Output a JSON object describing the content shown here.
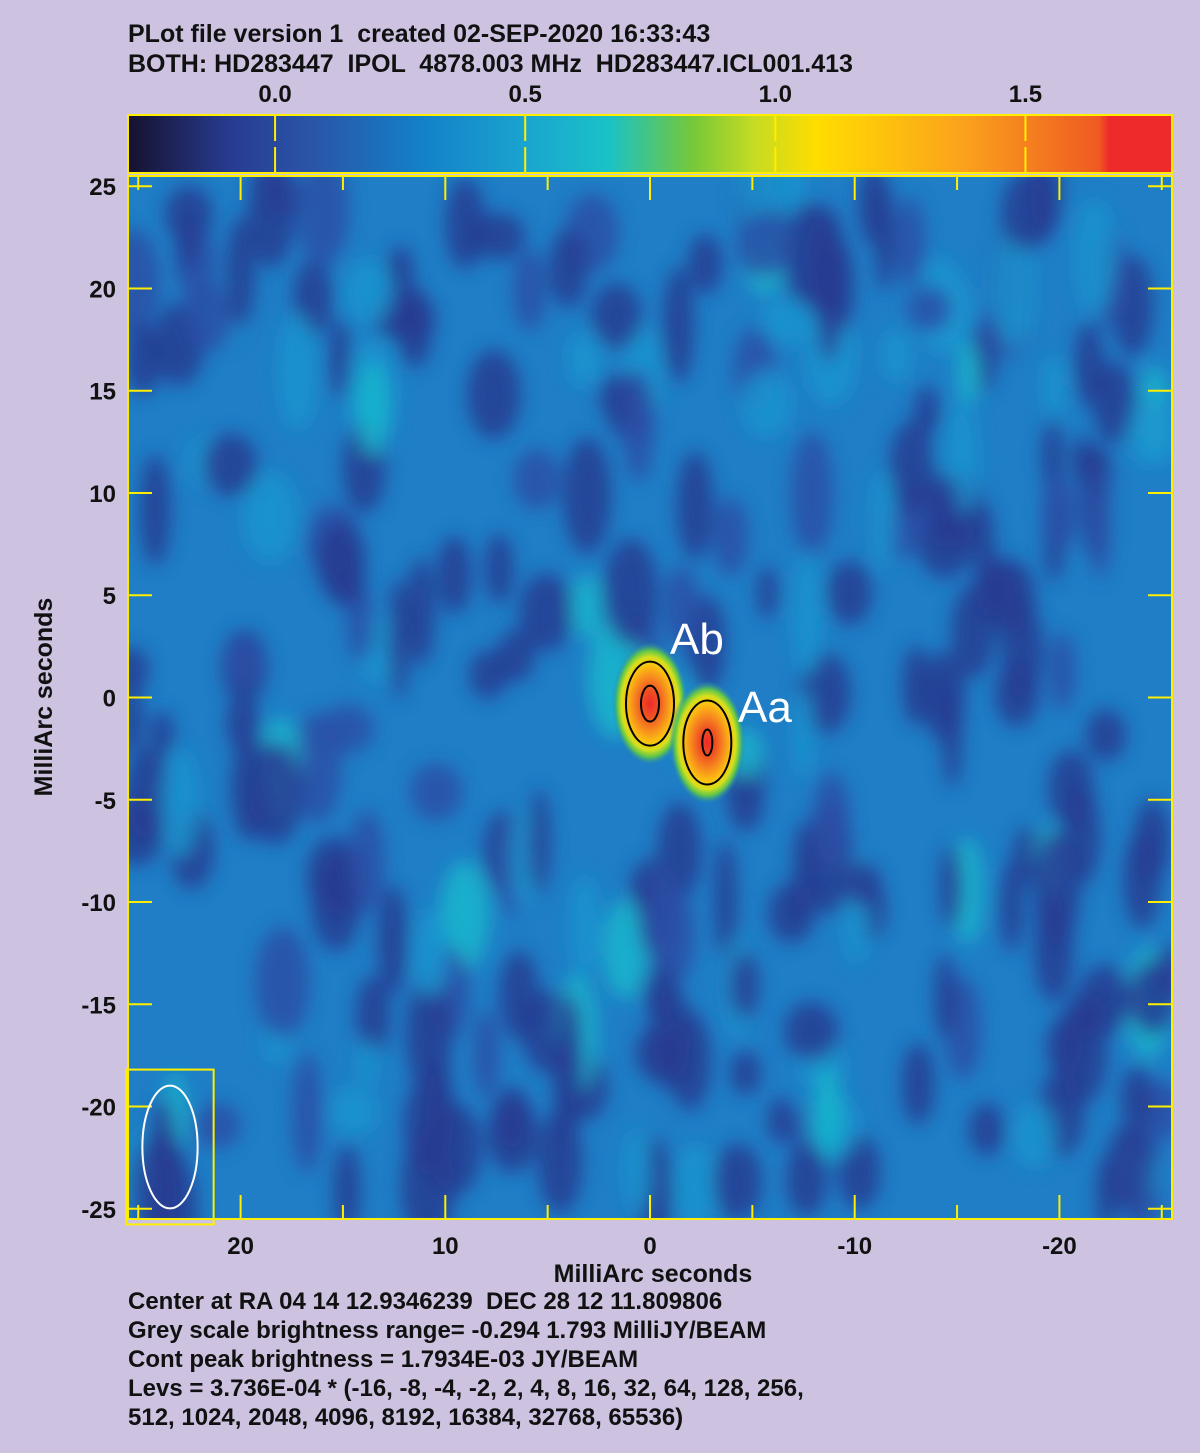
{
  "header": {
    "line1": "PLot file version 1  created 02-SEP-2020 16:33:43",
    "line2": "BOTH: HD283447  IPOL  4878.003 MHz  HD283447.ICL001.413"
  },
  "footer": {
    "lines": [
      "Center at RA 04 14 12.9346239  DEC 28 12 11.809806",
      "Grey scale brightness range= -0.294 1.793 MilliJY/BEAM",
      "Cont peak brightness = 1.7934E-03 JY/BEAM",
      "Levs = 3.736E-04 * (-16, -8, -4, -2, 2, 4, 8, 16, 32, 64, 128, 256,",
      "512, 1024, 2048, 4096, 8192, 16384, 32768, 65536)"
    ]
  },
  "chart_data": {
    "type": "heatmap",
    "xlabel": "MilliArc seconds",
    "ylabel": "MilliArc seconds",
    "xlim": [
      25.5,
      -25.5
    ],
    "ylim": [
      -25.5,
      25.5
    ],
    "x_ticks": [
      20,
      10,
      0,
      -10,
      -20
    ],
    "y_ticks": [
      25,
      20,
      15,
      10,
      5,
      0,
      -5,
      -10,
      -15,
      -20,
      -25
    ],
    "x_tick_labels": [
      "20",
      "10",
      "0",
      "-10",
      "-20"
    ],
    "y_tick_labels": [
      "25",
      "20",
      "15",
      "10",
      "5",
      "0",
      "-5",
      "-10",
      "-15",
      "-20",
      "-25"
    ],
    "colorbar": {
      "range": [
        -0.294,
        1.793
      ],
      "unit": "MilliJY/BEAM",
      "ticks": [
        0.0,
        0.5,
        1.0,
        1.5
      ],
      "tick_labels": [
        "0.0",
        "0.5",
        "1.0",
        "1.5"
      ],
      "colors": [
        "#16122f",
        "#273c92",
        "#1380c8",
        "#19c2c8",
        "#74c83a",
        "#d6e01c",
        "#ffdd00",
        "#fba21c",
        "#ee2a2a"
      ]
    },
    "sources": [
      {
        "label": "Ab",
        "x": 0.0,
        "y": -0.3,
        "peak": 1.79
      },
      {
        "label": "Aa",
        "x": -2.8,
        "y": -2.2,
        "peak": 1.55
      }
    ],
    "contour_levels_mJy": [
      0.747,
      1.494
    ],
    "beam": {
      "major": 6.0,
      "minor": 2.7,
      "pa_deg": 0
    },
    "colors": {
      "background": "#cdc3e1",
      "noise_low": "#273c92",
      "noise_mid": "#1f7ec6",
      "frame": "#ffee00",
      "beam": "#ffffff"
    }
  }
}
